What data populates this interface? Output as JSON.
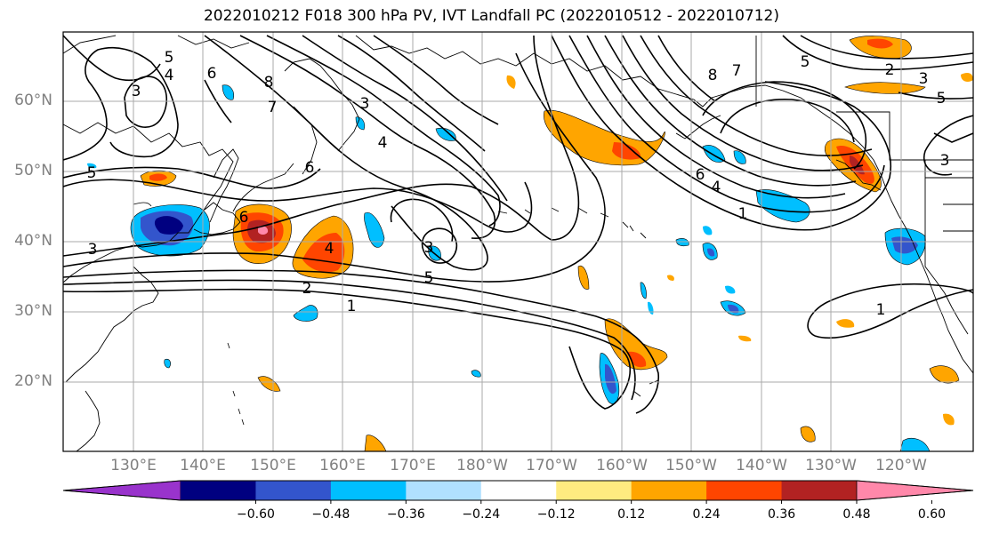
{
  "title": "2022010212 F018 300 hPa PV, IVT Landfall PC (2022010512 - 2022010712)",
  "lat_labels": [
    "60°N",
    "50°N",
    "40°N",
    "30°N",
    "20°N"
  ],
  "lon_labels": [
    "130°E",
    "140°E",
    "150°E",
    "160°E",
    "170°E",
    "180°W",
    "170°W",
    "160°W",
    "150°W",
    "140°W",
    "130°W",
    "120°W"
  ],
  "contour_labels": [
    "5",
    "4",
    "6",
    "3",
    "8",
    "7",
    "5",
    "6",
    "3",
    "4",
    "6",
    "3",
    "4",
    "2",
    "1",
    "5",
    "3",
    "8",
    "7",
    "5",
    "6",
    "4",
    "1",
    "3",
    "5",
    "3",
    "2",
    "1"
  ],
  "colorbar": {
    "colors": [
      "#9933cc",
      "#000080",
      "#3355cc",
      "#00bfff",
      "#b0e0ff",
      "#ffffff",
      "#ffeb80",
      "#ffa500",
      "#ff4500",
      "#b22222",
      "#ff88aa"
    ],
    "tick_labels": [
      "−0.60",
      "−0.48",
      "−0.36",
      "−0.24",
      "−0.12",
      "0.12",
      "0.24",
      "0.36",
      "0.48",
      "0.60"
    ]
  },
  "colors": {
    "grid": "#aaaaaa",
    "contour": "#000000",
    "axis_label": "#808080"
  }
}
